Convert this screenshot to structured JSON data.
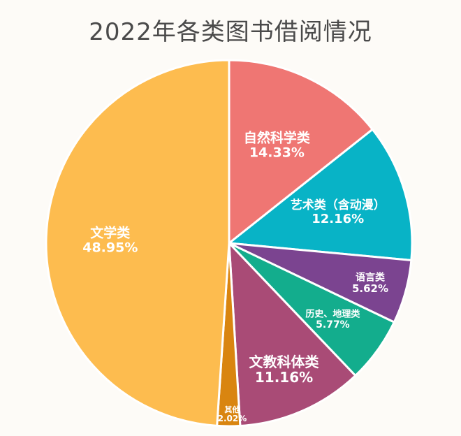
{
  "chart_data": {
    "type": "pie",
    "title": "2022年各类图书借阅情况",
    "start_angle_deg": 0,
    "direction": "clockwise",
    "slices": [
      {
        "name": "自然科学类",
        "value": 14.33,
        "label": "14.33%",
        "color": "#ef7673"
      },
      {
        "name": "艺术类（含动漫）",
        "value": 12.16,
        "label": "12.16%",
        "color": "#08b3c6"
      },
      {
        "name": "语言类",
        "value": 5.62,
        "label": "5.62%",
        "color": "#7b4490"
      },
      {
        "name": "历史、地理类",
        "value": 5.77,
        "label": "5.77%",
        "color": "#13ad8d"
      },
      {
        "name": "文教科体类",
        "value": 11.16,
        "label": "11.16%",
        "color": "#a94b76"
      },
      {
        "name": "其他",
        "value": 2.02,
        "label": "2.02%",
        "color": "#d98510"
      },
      {
        "name": "文学类",
        "value": 48.95,
        "label": "48.95%",
        "color": "#fdbc4f"
      }
    ]
  }
}
